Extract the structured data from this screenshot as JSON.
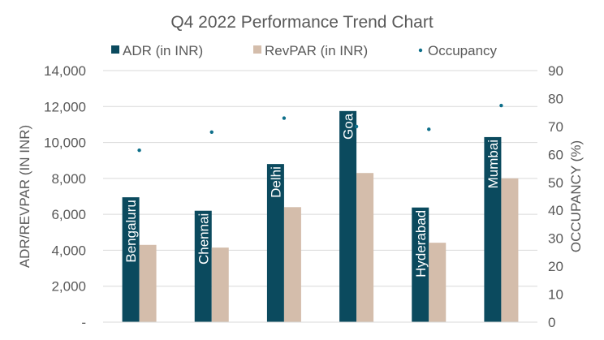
{
  "chart_data": {
    "type": "bar",
    "title": "Q4 2022 Performance Trend Chart",
    "categories": [
      "Bengaluru",
      "Chennai",
      "Delhi",
      "Goa",
      "Hyderabad",
      "Mumbai"
    ],
    "series": [
      {
        "name": "ADR (in INR)",
        "kind": "bar",
        "axis": "left",
        "color": "#0b4a5e",
        "values": [
          6950,
          6200,
          8800,
          11750,
          6380,
          10300
        ]
      },
      {
        "name": "RevPAR (in INR)",
        "kind": "bar",
        "axis": "left",
        "color": "#d4bdab",
        "values": [
          4300,
          4150,
          6400,
          8300,
          4420,
          8000
        ]
      },
      {
        "name": "Occupancy",
        "kind": "scatter",
        "axis": "right",
        "color": "#0e6f8a",
        "values": [
          61.5,
          68,
          73,
          70,
          69,
          77.5
        ]
      }
    ],
    "ylabel": "ADR/REVPAR (IN INR)",
    "ylabel_right": "OCCUPANCY (%)",
    "ylim": [
      0,
      14000
    ],
    "ylim_right": [
      0,
      90
    ],
    "yticks": [
      "-",
      "2,000",
      "4,000",
      "6,000",
      "8,000",
      "10,000",
      "12,000",
      "14,000"
    ],
    "yticks_right": [
      "0",
      "10",
      "20",
      "30",
      "40",
      "50",
      "60",
      "70",
      "80",
      "90"
    ],
    "grid": true,
    "legend_position": "top"
  }
}
